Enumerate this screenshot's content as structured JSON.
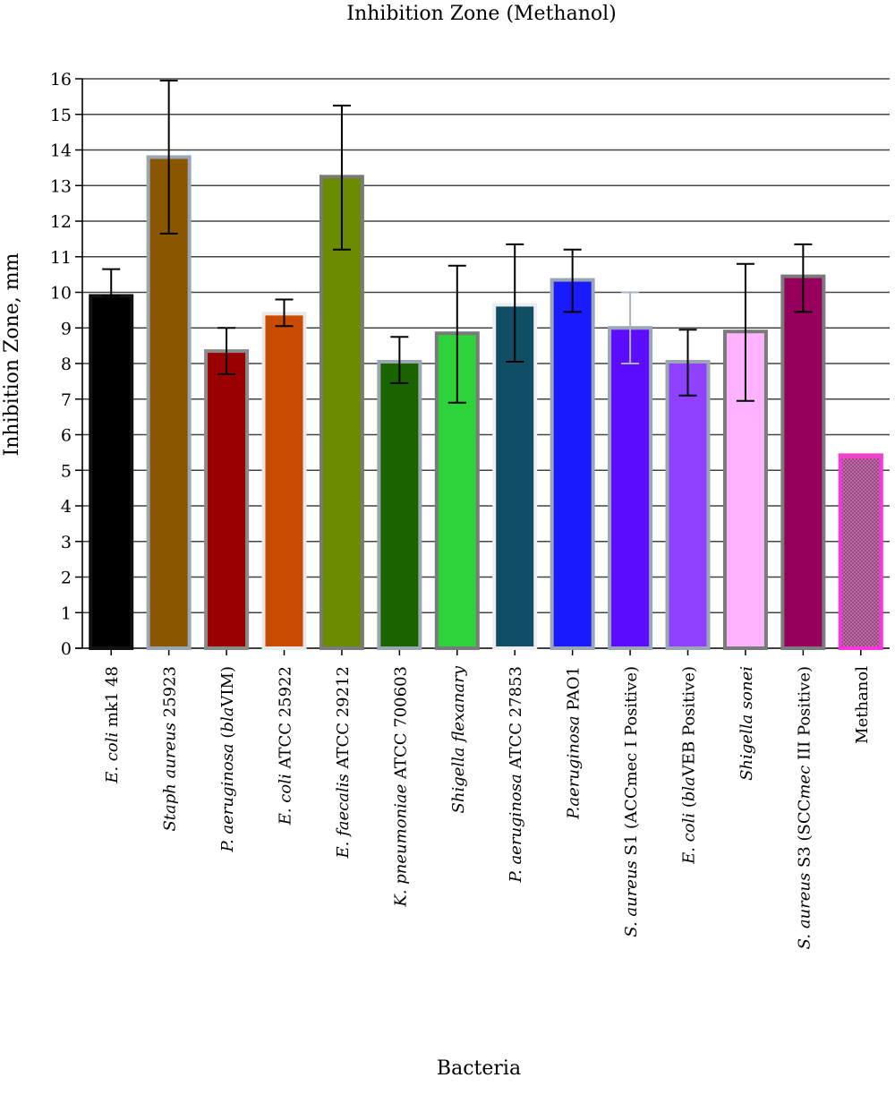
{
  "chart_data": {
    "type": "bar",
    "title": "Inhibition Zone (Methanol)",
    "xlabel": "Bacteria",
    "ylabel": "Inhibition Zone, mm",
    "ylim": [
      0,
      16
    ],
    "yticks": [
      0,
      1,
      2,
      3,
      4,
      5,
      6,
      7,
      8,
      9,
      10,
      11,
      12,
      13,
      14,
      15,
      16
    ],
    "grid": true,
    "categories": [
      [
        {
          "t": "E. coli",
          "i": true
        },
        {
          "t": " mk1 48",
          "i": false
        }
      ],
      [
        {
          "t": "Staph aureus",
          "i": true
        },
        {
          "t": " 25923",
          "i": false
        }
      ],
      [
        {
          "t": "P. aeruginosa",
          "i": true
        },
        {
          "t": " (",
          "i": false
        },
        {
          "t": "bla",
          "i": true
        },
        {
          "t": "VIM)",
          "i": false
        }
      ],
      [
        {
          "t": "E. coli",
          "i": true
        },
        {
          "t": " ATCC 25922",
          "i": false
        }
      ],
      [
        {
          "t": "E. faecalis",
          "i": true
        },
        {
          "t": " ATCC 29212",
          "i": false
        }
      ],
      [
        {
          "t": "K. pneumoniae",
          "i": true
        },
        {
          "t": " ATCC 700603",
          "i": false
        }
      ],
      [
        {
          "t": "Shigella flexanary",
          "i": true
        }
      ],
      [
        {
          "t": "P. aeruginosa",
          "i": true
        },
        {
          "t": " ATCC 27853",
          "i": false
        }
      ],
      [
        {
          "t": "P.aeruginosa",
          "i": true
        },
        {
          "t": " PAO1",
          "i": false
        }
      ],
      [
        {
          "t": "S. aureus",
          "i": true
        },
        {
          "t": " S1 (ACCmec I Positive)",
          "i": false
        }
      ],
      [
        {
          "t": "E. coli",
          "i": true
        },
        {
          "t": " (",
          "i": false
        },
        {
          "t": "bla",
          "i": true
        },
        {
          "t": "VEB Positive)",
          "i": false
        }
      ],
      [
        {
          "t": "Shigella sonei",
          "i": true
        }
      ],
      [
        {
          "t": "S. aureus",
          "i": true
        },
        {
          "t": " S3 (SCC",
          "i": false
        },
        {
          "t": "mec",
          "i": true
        },
        {
          "t": " III Positive)",
          "i": false
        }
      ],
      [
        {
          "t": "Methanol",
          "i": false
        }
      ]
    ],
    "values": [
      9.9,
      13.8,
      8.35,
      9.4,
      13.25,
      8.05,
      8.85,
      9.65,
      10.35,
      9.0,
      8.05,
      8.9,
      10.45,
      5.4
    ],
    "error_low": [
      9.9,
      11.65,
      7.7,
      9.05,
      11.2,
      7.45,
      6.9,
      8.05,
      9.45,
      8.0,
      7.1,
      6.95,
      9.45,
      null
    ],
    "error_high": [
      10.65,
      15.95,
      9.0,
      9.8,
      15.25,
      8.75,
      10.75,
      11.35,
      11.2,
      10.0,
      8.95,
      10.8,
      11.35,
      null
    ],
    "colors": [
      "#000000",
      "#8a5600",
      "#990000",
      "#c94b00",
      "#6b8c00",
      "#1a6400",
      "#2ed23a",
      "#0f4e64",
      "#1a1aff",
      "#5c0cff",
      "#9040ff",
      "#ffb3ff",
      "#96005c",
      "#ee44cc"
    ],
    "borders": [
      "#111111",
      "#9aa6b4",
      "#8a8a8a",
      "#e8e8e8",
      "#7a7a7a",
      "#9aa6b4",
      "#7a7a7a",
      "#eeeeee",
      "#9aa6b4",
      "#9aa6b4",
      "#9aa6b4",
      "#7a7a7a",
      "#7a7a7a",
      "#ff33dd"
    ],
    "error_colors": [
      "#000000",
      "#000000",
      "#000000",
      "#000000",
      "#000000",
      "#000000",
      "#000000",
      "#000000",
      "#000000",
      "#a8b4c0",
      "#000000",
      "#000000",
      "#000000",
      "#000000"
    ]
  }
}
